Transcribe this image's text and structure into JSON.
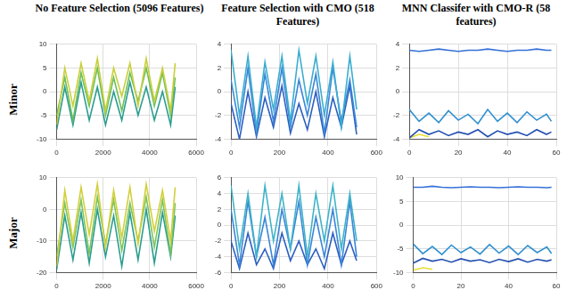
{
  "column_titles": [
    "No Feature Selection (5096 Features)",
    "Feature Selection with CMO (518 Features)",
    "MNN Classifer with CMO-R (58 features)"
  ],
  "row_labels": [
    "Minor",
    "Major"
  ],
  "chart_data": [
    {
      "type": "line",
      "grid": true,
      "x": [
        0,
        350,
        700,
        1050,
        1400,
        1750,
        2100,
        2450,
        2800,
        3150,
        3500,
        3850,
        4200,
        4550,
        4900,
        5096
      ],
      "xlim": [
        0,
        6000
      ],
      "xticks": [
        0,
        2000,
        4000,
        6000
      ],
      "ylim": [
        -10,
        10
      ],
      "yticks": [
        -10,
        -5,
        0,
        5,
        10
      ],
      "series": [
        {
          "color": "#c9cf3a",
          "values": [
            -7,
            5,
            -3,
            6,
            -2,
            7,
            -4,
            5,
            -1,
            6,
            -3,
            7,
            -2,
            5,
            -4,
            6
          ]
        },
        {
          "color": "#6cbf5a",
          "values": [
            -5,
            3,
            -6,
            4,
            -3,
            5,
            -5,
            3,
            -4,
            4,
            -2,
            5,
            -3,
            4,
            -5,
            3
          ]
        },
        {
          "color": "#2a9d8f",
          "values": [
            -8,
            1,
            -7,
            2,
            -6,
            1,
            -7,
            0,
            -6,
            2,
            -5,
            1,
            -6,
            0,
            -7,
            1
          ]
        }
      ]
    },
    {
      "type": "line",
      "grid": true,
      "x": [
        0,
        35,
        70,
        105,
        140,
        175,
        210,
        245,
        280,
        315,
        350,
        385,
        420,
        455,
        490,
        518
      ],
      "xlim": [
        0,
        600
      ],
      "xticks": [
        0,
        200,
        400,
        600
      ],
      "ylim": [
        -4,
        4
      ],
      "yticks": [
        -4,
        -2,
        0,
        2,
        4
      ],
      "series": [
        {
          "color": "#3aaed0",
          "values": [
            3.5,
            -2,
            3,
            -3,
            2.5,
            -1.5,
            3,
            -2.5,
            3.5,
            -1,
            3,
            -2,
            2.5,
            -3,
            3,
            -1.5
          ]
        },
        {
          "color": "#3a86d8",
          "values": [
            1,
            -3,
            2,
            -3.5,
            1.5,
            -2.5,
            2,
            -3,
            1,
            -2,
            1.5,
            -3.5,
            2,
            -2.5,
            1,
            -3
          ]
        },
        {
          "color": "#2d5fc0",
          "values": [
            -1,
            -4,
            0,
            -3.8,
            -0.5,
            -3,
            0.5,
            -3.5,
            -1,
            -3.2,
            0,
            -3.8,
            -0.5,
            -3,
            0.5,
            -3.6
          ]
        }
      ]
    },
    {
      "type": "line",
      "grid": true,
      "x": [
        0,
        4,
        8,
        12,
        16,
        20,
        24,
        28,
        32,
        36,
        40,
        44,
        48,
        52,
        56,
        58
      ],
      "xlim": [
        0,
        60
      ],
      "xticks": [
        0,
        20,
        40,
        60
      ],
      "ylim": [
        -4,
        4
      ],
      "yticks": [
        -4,
        -2,
        0,
        2,
        4
      ],
      "series": [
        {
          "color": "#3470d8",
          "values": [
            3.5,
            3.4,
            3.5,
            3.6,
            3.5,
            3.4,
            3.5,
            3.5,
            3.6,
            3.5,
            3.4,
            3.5,
            3.5,
            3.6,
            3.5,
            3.5
          ]
        },
        {
          "color": "#2f8fd0",
          "values": [
            -1.5,
            -2.5,
            -1.8,
            -2.6,
            -1.6,
            -2.4,
            -1.9,
            -2.7,
            -1.5,
            -2.5,
            -1.8,
            -2.6,
            -1.7,
            -2.4,
            -1.9,
            -2.5
          ]
        },
        {
          "color": "#2450b0",
          "values": [
            -3.9,
            -3.2,
            -3.6,
            -3.3,
            -3.7,
            -3.4,
            -3.6,
            -3.2,
            -3.8,
            -3.3,
            -3.6,
            -3.4,
            -3.7,
            -3.2,
            -3.6,
            -3.4
          ]
        },
        {
          "color": "#e8dc30",
          "values": [
            -3.9,
            -3.6,
            -3.8,
            null,
            null,
            null,
            null,
            null,
            null,
            null,
            null,
            null,
            null,
            null,
            null,
            null
          ]
        }
      ]
    },
    {
      "type": "line",
      "grid": true,
      "x": [
        0,
        350,
        700,
        1050,
        1400,
        1750,
        2100,
        2450,
        2800,
        3150,
        3500,
        3850,
        4200,
        4550,
        4900,
        5096
      ],
      "xlim": [
        0,
        6000
      ],
      "xticks": [
        0,
        2000,
        4000,
        6000
      ],
      "ylim": [
        -20,
        10
      ],
      "yticks": [
        -20,
        -10,
        0,
        10
      ],
      "series": [
        {
          "color": "#d2cf3a",
          "values": [
            -18,
            6,
            -10,
            7,
            -8,
            8,
            -12,
            6,
            -9,
            7,
            -11,
            8,
            -7,
            6,
            -10,
            7
          ]
        },
        {
          "color": "#7cc45a",
          "values": [
            -15,
            2,
            -12,
            3,
            -14,
            4,
            -11,
            3,
            -13,
            2,
            -10,
            4,
            -12,
            3,
            -14,
            2
          ]
        },
        {
          "color": "#2a9d8f",
          "values": [
            -19,
            -2,
            -16,
            -1,
            -17,
            0,
            -15,
            -2,
            -18,
            -1,
            -16,
            0,
            -17,
            -1,
            -15,
            -2
          ]
        }
      ]
    },
    {
      "type": "line",
      "grid": true,
      "x": [
        0,
        35,
        70,
        105,
        140,
        175,
        210,
        245,
        280,
        315,
        350,
        385,
        420,
        455,
        490,
        518
      ],
      "xlim": [
        0,
        600
      ],
      "xticks": [
        0,
        200,
        400,
        600
      ],
      "ylim": [
        -6,
        6
      ],
      "yticks": [
        -6,
        -4,
        -2,
        0,
        2,
        4,
        6
      ],
      "series": [
        {
          "color": "#3fb4c8",
          "values": [
            5,
            -3,
            4,
            -4,
            5,
            -2,
            4,
            -3,
            5,
            -4,
            4,
            -2,
            5,
            -3,
            4,
            -2
          ]
        },
        {
          "color": "#3a86d8",
          "values": [
            2,
            -5,
            3,
            -4,
            1,
            -5,
            2,
            -3,
            3,
            -5,
            1,
            -4,
            2,
            -5,
            3,
            -4
          ]
        },
        {
          "color": "#2d5fc0",
          "values": [
            -2,
            -5.5,
            -1,
            -5,
            -3,
            -5.5,
            -1,
            -4.5,
            -2,
            -5,
            -3,
            -5.5,
            -1,
            -5,
            -2,
            -4.5
          ]
        }
      ]
    },
    {
      "type": "line",
      "grid": true,
      "x": [
        0,
        4,
        8,
        12,
        16,
        20,
        24,
        28,
        32,
        36,
        40,
        44,
        48,
        52,
        56,
        58
      ],
      "xlim": [
        0,
        60
      ],
      "xticks": [
        0,
        20,
        40,
        60
      ],
      "ylim": [
        -10,
        10
      ],
      "yticks": [
        -10,
        -5,
        0,
        5,
        10
      ],
      "series": [
        {
          "color": "#3470d8",
          "values": [
            8,
            8,
            8.2,
            8,
            7.9,
            8,
            8.1,
            8,
            8,
            7.9,
            8,
            8.1,
            8,
            8,
            7.9,
            8
          ]
        },
        {
          "color": "#2f8fd0",
          "values": [
            -4,
            -6,
            -4.5,
            -6.2,
            -4.2,
            -5.8,
            -4.6,
            -6.1,
            -4.1,
            -5.9,
            -4.4,
            -6.2,
            -4.3,
            -5.8,
            -4.6,
            -6
          ]
        },
        {
          "color": "#2450b0",
          "values": [
            -8,
            -7,
            -7.6,
            -7.2,
            -7.8,
            -7.1,
            -7.6,
            -7.3,
            -7.9,
            -7.2,
            -7.7,
            -7.1,
            -7.8,
            -7.2,
            -7.6,
            -7.3
          ]
        },
        {
          "color": "#e8dc30",
          "values": [
            -9.5,
            -9,
            -9.3,
            null,
            null,
            null,
            null,
            null,
            null,
            null,
            null,
            null,
            null,
            null,
            null,
            null
          ]
        }
      ]
    }
  ]
}
